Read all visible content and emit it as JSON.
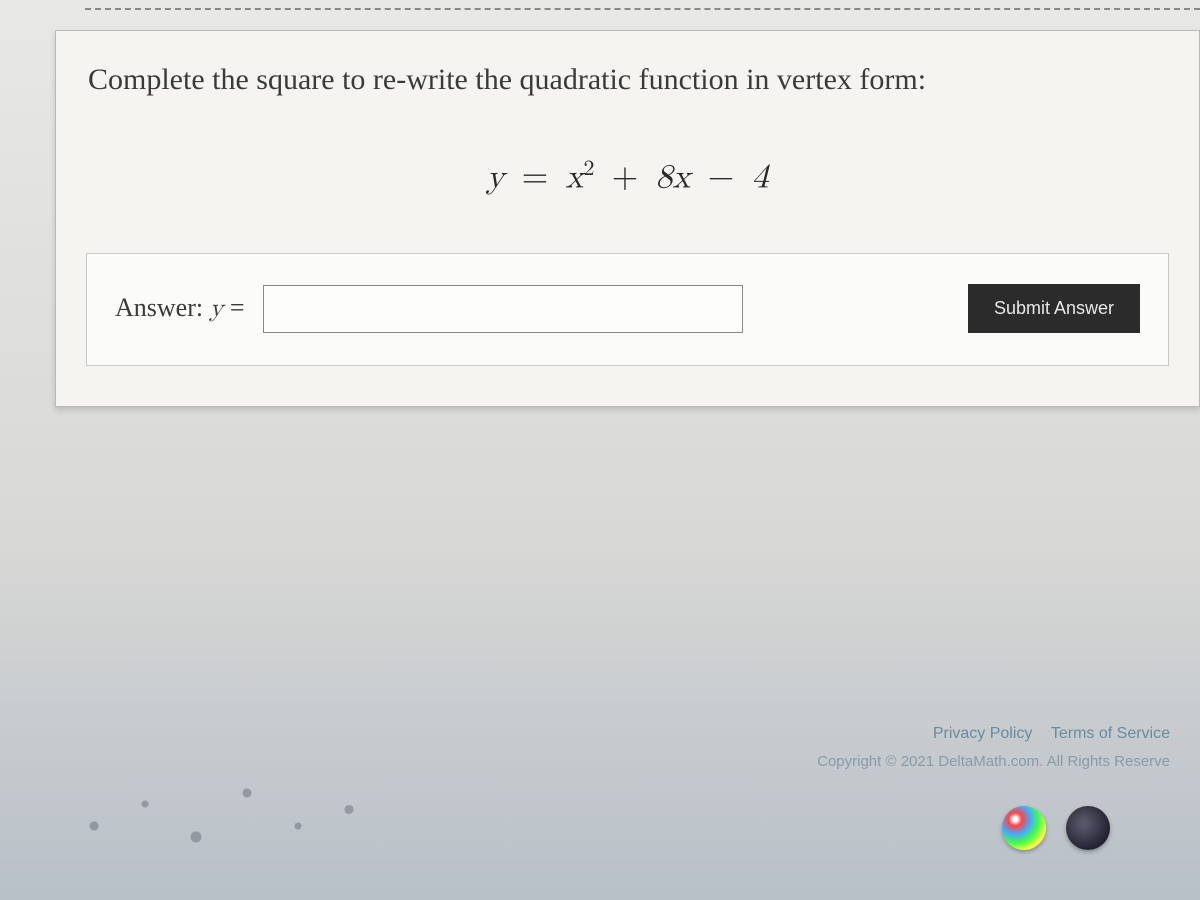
{
  "problem": {
    "prompt": "Complete the square to re-write the quadratic function in vertex form:",
    "equation": {
      "lhs_var": "y",
      "rhs_var": "x",
      "exponent": "2",
      "linear_coef": "8",
      "linear_var": "x",
      "constant": "4",
      "display": "y = x² + 8x − 4"
    }
  },
  "answer": {
    "label_prefix": "Answer: ",
    "label_var": "y",
    "label_eq": " =",
    "input_value": "",
    "submit_label": "Submit Answer"
  },
  "footer": {
    "privacy": "Privacy Policy",
    "terms": "Terms of Service",
    "copyright": "Copyright © 2021 DeltaMath.com. All Rights Reserve"
  },
  "colors": {
    "panel_bg": "#f5f4f1",
    "answer_box_bg": "#fbfbf9",
    "submit_bg": "#2b2b2b",
    "submit_fg": "#e8e8e6",
    "link": "#6a8aa0",
    "text": "#3a3a3a"
  }
}
